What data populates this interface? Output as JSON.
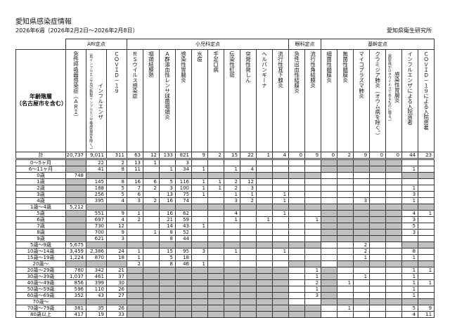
{
  "title": "愛知県感染症情報",
  "subtitle": "2026年6週（2026年2月2日～2026年2月8日）",
  "organization": "愛知県衛生研究所",
  "row_header": [
    "年齢階層",
    "（名古屋市を含む）"
  ],
  "groups": [
    {
      "label": "ARI定点",
      "span": 3
    },
    {
      "label": "小児科定点",
      "span": 10
    },
    {
      "label": "眼科定点",
      "span": 2
    },
    {
      "label": "基幹定点",
      "span": 7
    }
  ],
  "columns": [
    {
      "label": "急性呼吸器感染症（ＡＲＩ）"
    },
    {
      "label": "インフルエンザ",
      "note": "（鳥インフルエンザ及び新型インフルエンザ等感染症を除く。）"
    },
    {
      "label": "ＣＯＶＩＤ－１９"
    },
    {
      "label": "ＲＳウイルス感染症"
    },
    {
      "label": "咽頭結膜熱"
    },
    {
      "label": "Ａ群溶血性レンサ球菌咽頭炎"
    },
    {
      "label": "感染性胃腸炎"
    },
    {
      "label": "水痘"
    },
    {
      "label": "手足口病"
    },
    {
      "label": "伝染性紅斑"
    },
    {
      "label": "突発性発しん"
    },
    {
      "label": "ヘルパンギーナ"
    },
    {
      "label": "流行性耳下腺炎"
    },
    {
      "label": "急性出血性結膜炎"
    },
    {
      "label": "流行性角結膜炎"
    },
    {
      "label": "細菌性髄膜炎"
    },
    {
      "label": "無菌性髄膜炎"
    },
    {
      "label": "マイコプラズマ肺炎"
    },
    {
      "label": "クラミジア肺炎（オウム病を除く。）"
    },
    {
      "label": "感染性胃腸炎",
      "note": "（病原体がロタウイルスであるものに限る。）"
    },
    {
      "label": "インフルエンザによる入院患者"
    },
    {
      "label": "ＣＯＶＩＤ－１９による入院患者"
    }
  ],
  "shaded_color": "#c0c0c0",
  "total": {
    "label": "計",
    "values": [
      "20,737",
      "9,011",
      "311",
      "63",
      "12",
      "133",
      "821",
      "9",
      "2",
      "15",
      "22",
      "1",
      "4",
      "0",
      "9",
      "0",
      "2",
      "9",
      "0",
      "0",
      "44",
      "23"
    ]
  },
  "rows": [
    {
      "age": "0～5ヶ月",
      "values": [
        null,
        "22",
        "2",
        "13",
        "1",
        "",
        "3",
        "",
        "",
        "",
        "",
        "",
        "",
        "",
        "",
        null,
        null,
        null,
        null,
        null,
        "",
        ""
      ]
    },
    {
      "age": "6～11ヶ月",
      "values": [
        null,
        "41",
        "8",
        "11",
        "",
        "1",
        "34",
        "1",
        "",
        "1",
        "4",
        "",
        "",
        "",
        "",
        null,
        null,
        null,
        null,
        null,
        "1",
        ""
      ]
    },
    {
      "age": "0歳",
      "values": [
        "748",
        null,
        null,
        null,
        null,
        null,
        null,
        null,
        null,
        null,
        null,
        null,
        null,
        null,
        null,
        "",
        "",
        "",
        "",
        "",
        null,
        null
      ]
    },
    {
      "age": "1歳",
      "values": [
        null,
        "145",
        "8",
        "16",
        "6",
        "5",
        "116",
        "1",
        "1",
        "2",
        "12",
        "",
        "",
        "",
        "",
        "",
        "",
        "",
        "",
        "",
        "",
        ""
      ]
    },
    {
      "age": "2歳",
      "values": [
        null,
        "188",
        "5",
        "7",
        "2",
        "3",
        "100",
        "1",
        "1",
        "2",
        "3",
        "",
        "",
        "",
        "",
        "",
        "",
        "",
        "",
        "",
        "1",
        ""
      ]
    },
    {
      "age": "3歳",
      "values": [
        null,
        "256",
        "5",
        "6",
        "",
        "13",
        "75",
        "1",
        "",
        "1",
        "1",
        "",
        "1",
        "",
        "",
        "",
        "",
        "",
        "",
        "",
        "3",
        ""
      ]
    },
    {
      "age": "4歳",
      "values": [
        null,
        "395",
        "4",
        "3",
        "2",
        "16",
        "74",
        "",
        "",
        "3",
        "2",
        "",
        "1",
        "",
        "",
        "",
        "",
        "3",
        "",
        "",
        "1",
        ""
      ]
    },
    {
      "age": "1歳～4歳",
      "values": [
        "5,212",
        null,
        null,
        null,
        null,
        null,
        null,
        null,
        null,
        null,
        null,
        null,
        null,
        null,
        null,
        null,
        null,
        null,
        null,
        null,
        null,
        null
      ]
    },
    {
      "age": "5歳",
      "values": [
        null,
        "551",
        "9",
        "1",
        "",
        "16",
        "62",
        "",
        "",
        "4",
        "",
        "",
        "1",
        "",
        "",
        null,
        null,
        null,
        null,
        null,
        "4",
        "1"
      ]
    },
    {
      "age": "6歳",
      "values": [
        null,
        "697",
        "4",
        "2",
        "",
        "21",
        "59",
        "",
        "",
        "1",
        "",
        "1",
        "",
        "",
        "1",
        null,
        null,
        null,
        null,
        null,
        "3",
        ""
      ]
    },
    {
      "age": "7歳",
      "values": [
        null,
        "730",
        "12",
        "",
        "",
        "14",
        "43",
        "1",
        "",
        "",
        "",
        "",
        "",
        "",
        "",
        null,
        null,
        null,
        null,
        null,
        "5",
        ""
      ]
    },
    {
      "age": "8歳",
      "values": [
        null,
        "700",
        "9",
        "",
        "1",
        "8",
        "52",
        "",
        "",
        "",
        "",
        "",
        "",
        "",
        "",
        null,
        null,
        null,
        null,
        null,
        "3",
        ""
      ]
    },
    {
      "age": "9歳",
      "values": [
        null,
        "621",
        "3",
        "",
        "",
        "8",
        "44",
        "",
        "",
        "",
        "",
        "",
        "",
        "",
        "",
        null,
        null,
        null,
        null,
        null,
        "",
        ""
      ]
    },
    {
      "age": "5歳～9歳",
      "values": [
        "5,675",
        null,
        null,
        null,
        null,
        null,
        null,
        null,
        null,
        null,
        null,
        null,
        null,
        null,
        null,
        "",
        "",
        "2",
        "",
        "",
        null,
        null
      ]
    },
    {
      "age": "10歳～14歳",
      "values": [
        "3,459",
        "2,386",
        "24",
        "1",
        "",
        "15",
        "95",
        "3",
        "",
        "1",
        "",
        "",
        "1",
        "",
        "",
        "",
        "",
        "2",
        "",
        "",
        "8",
        ""
      ]
    },
    {
      "age": "15歳～19歳",
      "values": [
        "1,224",
        "870",
        "18",
        "1",
        "",
        "5",
        "18",
        "",
        "",
        "",
        "",
        "",
        "",
        "",
        "",
        "",
        "",
        "1",
        "",
        "",
        "1",
        ""
      ]
    },
    {
      "age": "20歳～",
      "values": [
        null,
        null,
        null,
        "2",
        "",
        "8",
        "46",
        "1",
        "",
        "",
        "",
        "",
        "",
        null,
        null,
        "",
        null,
        null,
        null,
        null,
        null,
        null
      ]
    },
    {
      "age": "20歳～29歳",
      "values": [
        "780",
        "342",
        "21",
        null,
        null,
        null,
        null,
        null,
        null,
        null,
        null,
        null,
        null,
        "",
        "1",
        null,
        "",
        "",
        "",
        "",
        "1",
        "1"
      ]
    },
    {
      "age": "30歳～39歳",
      "values": [
        "1,037",
        "461",
        "37",
        null,
        null,
        null,
        null,
        null,
        null,
        null,
        null,
        null,
        null,
        "",
        "1",
        null,
        "",
        "1",
        "",
        "",
        "1",
        ""
      ]
    },
    {
      "age": "40歳～49歳",
      "values": [
        "856",
        "399",
        "30",
        null,
        null,
        null,
        null,
        null,
        null,
        null,
        null,
        null,
        null,
        "",
        "2",
        null,
        "1",
        "",
        "",
        "",
        "1",
        "1"
      ]
    },
    {
      "age": "50歳～59歳",
      "values": [
        "596",
        "110",
        "26",
        null,
        null,
        null,
        null,
        null,
        null,
        null,
        null,
        null,
        null,
        "",
        "1",
        null,
        "",
        "",
        "",
        "",
        "1",
        ""
      ]
    },
    {
      "age": "60歳～69歳",
      "values": [
        "352",
        "43",
        "27",
        null,
        null,
        null,
        null,
        null,
        null,
        null,
        null,
        null,
        null,
        "",
        "3",
        null,
        "",
        "",
        "",
        "",
        "1",
        ""
      ]
    },
    {
      "age": "70歳～",
      "values": [
        null,
        null,
        null,
        null,
        null,
        null,
        null,
        null,
        null,
        null,
        null,
        null,
        null,
        "",
        "",
        null,
        null,
        null,
        null,
        null,
        null,
        null
      ]
    },
    {
      "age": "70歳～79歳",
      "values": [
        "381",
        "35",
        "26",
        null,
        null,
        null,
        null,
        null,
        null,
        null,
        null,
        null,
        null,
        null,
        null,
        "",
        "1",
        "",
        "",
        "",
        "5",
        "9"
      ]
    },
    {
      "age": "80歳以上",
      "values": [
        "417",
        "19",
        "33",
        null,
        null,
        null,
        null,
        null,
        null,
        null,
        null,
        null,
        null,
        null,
        null,
        "",
        "",
        "",
        "",
        "",
        "4",
        "11"
      ]
    }
  ]
}
